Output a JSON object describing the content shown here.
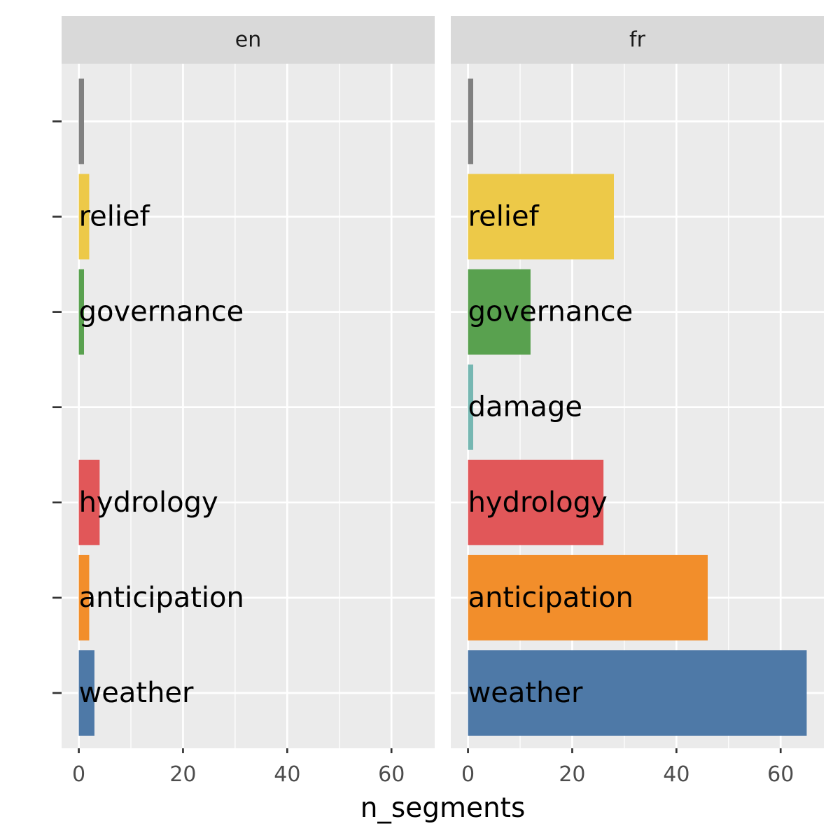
{
  "chart_data": {
    "type": "bar",
    "orientation": "horizontal",
    "xlabel": "n_segments",
    "ylabel": "",
    "xlim": [
      -3.3,
      68.3
    ],
    "x_ticks": [
      0,
      20,
      40,
      60
    ],
    "x_tick_labels": [
      "0",
      "20",
      "40",
      "60"
    ],
    "grid": true,
    "categories": [
      "weather",
      "anticipation",
      "hydrology",
      "damage",
      "governance",
      "relief",
      ""
    ],
    "colors": {
      "weather": "#4e79a7",
      "anticipation": "#f28e2b",
      "hydrology": "#e15759",
      "damage": "#76b7b2",
      "governance": "#59a14f",
      "relief": "#edc948",
      "": "#808080"
    },
    "panels": [
      {
        "label": "en",
        "values": [
          3,
          2,
          4,
          0,
          1,
          2,
          1
        ],
        "labels": [
          "weather",
          "anticipation",
          "hydrology",
          "",
          "governance",
          "relief",
          ""
        ]
      },
      {
        "label": "fr",
        "values": [
          65,
          46,
          26,
          1,
          12,
          28,
          1
        ],
        "labels": [
          "weather",
          "anticipation",
          "hydrology",
          "damage",
          "governance",
          "relief",
          ""
        ]
      }
    ]
  }
}
